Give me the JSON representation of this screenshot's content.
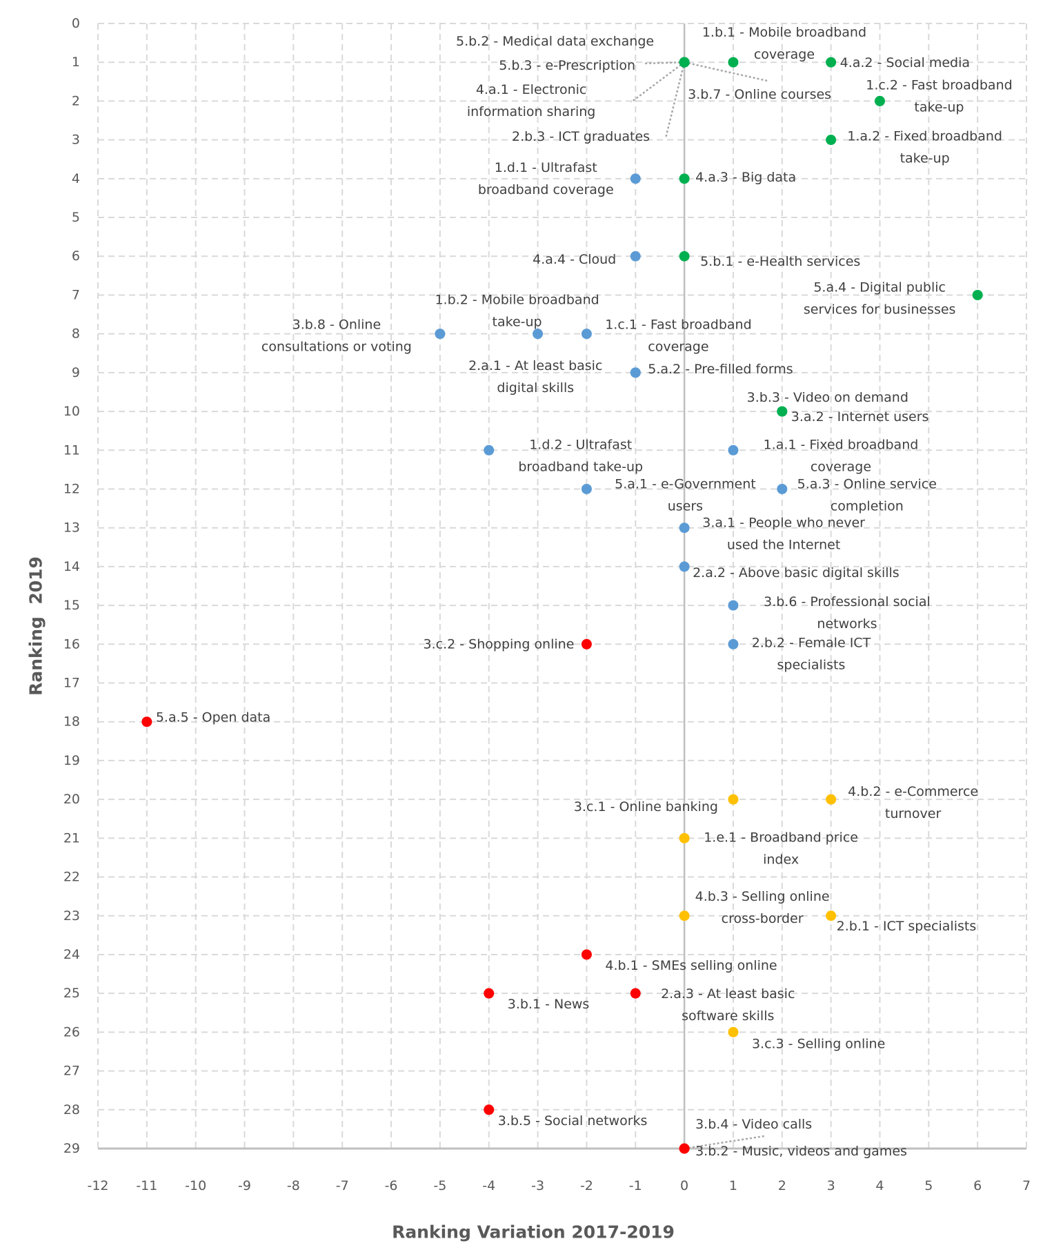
{
  "chart_data": {
    "type": "scatter",
    "title": "",
    "xlabel": "Ranking Variation 2017-2019",
    "ylabel": "Ranking  2019",
    "xlim": [
      -12,
      7
    ],
    "ylim": [
      0,
      29
    ],
    "y_inverted": true,
    "grid": true,
    "x_ticks": [
      "-12",
      "-11",
      "-10",
      "-9",
      "-8",
      "-7",
      "-6",
      "-5",
      "-4",
      "-3",
      "-2",
      "-1",
      "0",
      "1",
      "2",
      "3",
      "4",
      "5",
      "6",
      "7"
    ],
    "y_ticks": [
      "0",
      "1",
      "2",
      "3",
      "4",
      "5",
      "6",
      "7",
      "8",
      "9",
      "10",
      "11",
      "12",
      "13",
      "14",
      "15",
      "16",
      "17",
      "18",
      "19",
      "20",
      "21",
      "22",
      "23",
      "24",
      "25",
      "26",
      "27",
      "28",
      "29"
    ],
    "colors": {
      "green": "#00b050",
      "blue": "#5b9bd5",
      "red": "#ff0000",
      "yellow": "#ffc000"
    },
    "points": [
      {
        "lines": [
          "5.b.2 - Medical data exchange"
        ],
        "x": 0,
        "y": 1,
        "color": "green"
      },
      {
        "lines": [
          "5.b.3 - e-Prescription"
        ],
        "x": 0,
        "y": 1,
        "color": "green"
      },
      {
        "lines": [
          "4.a.1 - Electronic",
          "information sharing"
        ],
        "x": 0,
        "y": 1,
        "color": "green"
      },
      {
        "lines": [
          "2.b.3 - ICT graduates"
        ],
        "x": 0,
        "y": 1,
        "color": "green"
      },
      {
        "lines": [
          "3.b.7 - Online courses"
        ],
        "x": 0,
        "y": 1,
        "color": "green"
      },
      {
        "lines": [
          "1.b.1 - Mobile broadband",
          "coverage"
        ],
        "x": 1,
        "y": 1,
        "color": "green"
      },
      {
        "lines": [
          "4.a.2 - Social media"
        ],
        "x": 3,
        "y": 1,
        "color": "green"
      },
      {
        "lines": [
          "1.c.2 - Fast broadband",
          "take-up"
        ],
        "x": 4,
        "y": 2,
        "color": "green"
      },
      {
        "lines": [
          "1.a.2 - Fixed broadband",
          "take-up"
        ],
        "x": 3,
        "y": 3,
        "color": "green"
      },
      {
        "lines": [
          "4.a.3 - Big data"
        ],
        "x": 0,
        "y": 4,
        "color": "green"
      },
      {
        "lines": [
          "1.d.1 - Ultrafast",
          "broadband coverage"
        ],
        "x": -1,
        "y": 4,
        "color": "blue"
      },
      {
        "lines": [
          "4.a.4 - Cloud"
        ],
        "x": -1,
        "y": 6,
        "color": "blue"
      },
      {
        "lines": [
          "5.b.1 - e-Health services"
        ],
        "x": 0,
        "y": 6,
        "color": "green"
      },
      {
        "lines": [
          "5.a.4 - Digital public",
          "services for businesses"
        ],
        "x": 6,
        "y": 7,
        "color": "green"
      },
      {
        "lines": [
          "3.b.8 - Online",
          "consultations or voting"
        ],
        "x": -5,
        "y": 8,
        "color": "blue"
      },
      {
        "lines": [
          "1.b.2 - Mobile broadband",
          "take-up"
        ],
        "x": -3,
        "y": 8,
        "color": "blue"
      },
      {
        "lines": [
          "1.c.1 - Fast broadband",
          "coverage"
        ],
        "x": -2,
        "y": 8,
        "color": "blue"
      },
      {
        "lines": [
          "2.a.1 - At least basic",
          "digital skills"
        ],
        "x": -1,
        "y": 9,
        "color": "blue"
      },
      {
        "lines": [
          "5.a.2 - Pre-filled forms"
        ],
        "x": -1,
        "y": 9,
        "color": "blue"
      },
      {
        "lines": [
          "3.b.3 - Video on demand"
        ],
        "x": 2,
        "y": 10,
        "color": "green"
      },
      {
        "lines": [
          "3.a.2 - Internet users"
        ],
        "x": 2,
        "y": 10,
        "color": "green"
      },
      {
        "lines": [
          "1.d.2 - Ultrafast",
          "broadband take-up"
        ],
        "x": -4,
        "y": 11,
        "color": "blue"
      },
      {
        "lines": [
          "1.a.1 - Fixed broadband",
          "coverage"
        ],
        "x": 1,
        "y": 11,
        "color": "blue"
      },
      {
        "lines": [
          "5.a.1 - e-Government",
          "users"
        ],
        "x": -2,
        "y": 12,
        "color": "blue"
      },
      {
        "lines": [
          "5.a.3 - Online service",
          "completion"
        ],
        "x": 2,
        "y": 12,
        "color": "blue"
      },
      {
        "lines": [
          "3.a.1 - People who never",
          "used the Internet"
        ],
        "x": 0,
        "y": 13,
        "color": "blue"
      },
      {
        "lines": [
          "2.a.2 - Above basic digital skills"
        ],
        "x": 0,
        "y": 14,
        "color": "blue"
      },
      {
        "lines": [
          "3.b.6 - Professional social",
          "networks"
        ],
        "x": 1,
        "y": 15,
        "color": "blue"
      },
      {
        "lines": [
          "2.b.2 - Female ICT",
          "specialists"
        ],
        "x": 1,
        "y": 16,
        "color": "blue"
      },
      {
        "lines": [
          "3.c.2 - Shopping online"
        ],
        "x": -2,
        "y": 16,
        "color": "red"
      },
      {
        "lines": [
          "5.a.5 - Open data"
        ],
        "x": -11,
        "y": 18,
        "color": "red"
      },
      {
        "lines": [
          "3.c.1 - Online banking"
        ],
        "x": 1,
        "y": 20,
        "color": "yellow"
      },
      {
        "lines": [
          "4.b.2 - e-Commerce",
          "turnover"
        ],
        "x": 3,
        "y": 20,
        "color": "yellow"
      },
      {
        "lines": [
          "1.e.1 - Broadband price",
          "index"
        ],
        "x": 0,
        "y": 21,
        "color": "yellow"
      },
      {
        "lines": [
          "4.b.3 - Selling online",
          "cross-border"
        ],
        "x": 0,
        "y": 23,
        "color": "yellow"
      },
      {
        "lines": [
          "2.b.1 - ICT specialists"
        ],
        "x": 3,
        "y": 23,
        "color": "yellow"
      },
      {
        "lines": [
          "4.b.1 - SMEs selling online"
        ],
        "x": -2,
        "y": 24,
        "color": "red"
      },
      {
        "lines": [
          "3.b.1 - News"
        ],
        "x": -4,
        "y": 25,
        "color": "red"
      },
      {
        "lines": [
          "2.a.3 - At least basic",
          "software skills"
        ],
        "x": -1,
        "y": 25,
        "color": "red"
      },
      {
        "lines": [
          "3.c.3 - Selling online"
        ],
        "x": 1,
        "y": 26,
        "color": "yellow"
      },
      {
        "lines": [
          "3.b.5 - Social networks"
        ],
        "x": -4,
        "y": 28,
        "color": "red"
      },
      {
        "lines": [
          "3.b.4 - Video calls"
        ],
        "x": 0,
        "y": 29,
        "color": "red"
      },
      {
        "lines": [
          "3.b.2 - Music, videos and games"
        ],
        "x": 0,
        "y": 29,
        "color": "red"
      }
    ]
  }
}
